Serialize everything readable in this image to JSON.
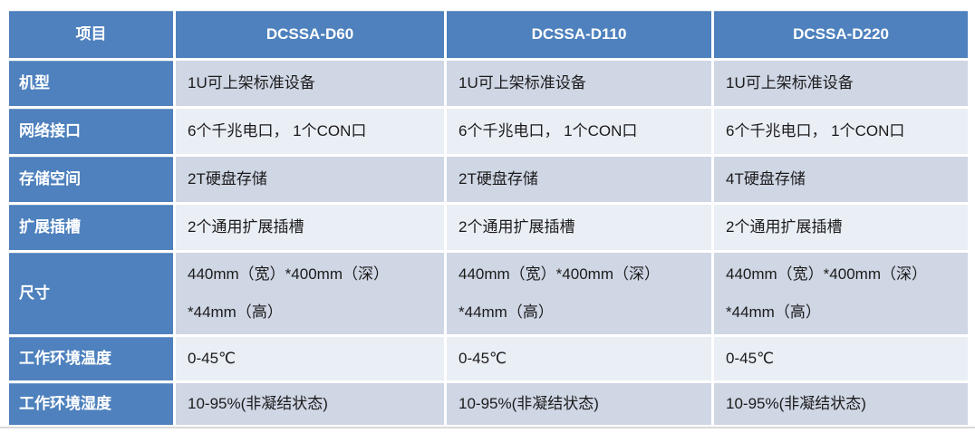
{
  "table": {
    "columns": [
      "项目",
      "DCSSA-D60",
      "DCSSA-D110",
      "DCSSA-D220"
    ],
    "rows": [
      {
        "label": "机型",
        "values": [
          "1U可上架标准设备",
          "1U可上架标准设备",
          "1U可上架标准设备"
        ]
      },
      {
        "label": "网络接口",
        "values": [
          "6个千兆电口， 1个CON口",
          "6个千兆电口， 1个CON口",
          "6个千兆电口， 1个CON口"
        ]
      },
      {
        "label": "存储空间",
        "values": [
          "2T硬盘存储",
          "2T硬盘存储",
          "4T硬盘存储"
        ]
      },
      {
        "label": "扩展插槽",
        "values": [
          "2个通用扩展插槽",
          "2个通用扩展插槽",
          "2个通用扩展插槽"
        ]
      },
      {
        "label": "尺寸",
        "values": [
          "440mm（宽）*400mm（深）\n*44mm（高）",
          "440mm（宽）*400mm（深）\n*44mm（高）",
          "440mm（宽）*400mm（深）\n*44mm（高）"
        ]
      },
      {
        "label": "工作环境温度",
        "values": [
          "0-45℃",
          "0-45℃",
          "0-45℃"
        ]
      },
      {
        "label": "工作环境湿度",
        "values": [
          "10-95%(非凝结状态)",
          "10-95%(非凝结状态)",
          "10-95%(非凝结状态)"
        ]
      }
    ]
  },
  "colors": {
    "header-bg": "#4E81BD",
    "label-bg": "#4E81BD",
    "band-dark": "#CFD6E4",
    "band-light": "#EAEEF5",
    "header-text": "#FFFFFF",
    "body-text": "#1B1B1B",
    "divider": "#D9D9D9",
    "page-bg": "#FFFFFF"
  }
}
